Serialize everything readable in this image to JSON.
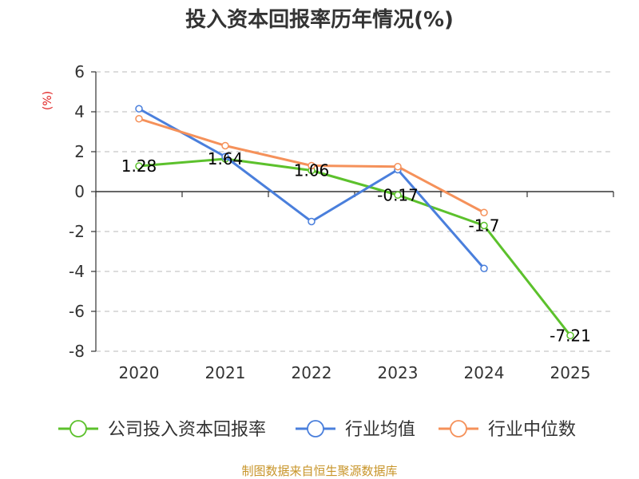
{
  "chart_data": {
    "type": "line",
    "title": "投入资本回报率历年情况(%)",
    "ylabel": "(%)",
    "xlabel": "",
    "categories": [
      "2020",
      "2021",
      "2022",
      "2023",
      "2024",
      "2025"
    ],
    "ylim": [
      -8,
      6
    ],
    "yticks": [
      6,
      4,
      2,
      0,
      -2,
      -4,
      -6,
      -8
    ],
    "grid": true,
    "series": [
      {
        "name": "公司投入资本回报率",
        "color": "#5cc12c",
        "values": [
          1.28,
          1.64,
          1.06,
          -0.17,
          -1.7,
          -7.21
        ],
        "labels": [
          "1.28",
          "1.64",
          "1.06",
          "-0.17",
          "-1.7",
          "-7.21"
        ]
      },
      {
        "name": "行业均值",
        "color": "#4a7fdc",
        "values": [
          4.15,
          1.75,
          -1.5,
          1.1,
          -3.85,
          null
        ]
      },
      {
        "name": "行业中位数",
        "color": "#f5915a",
        "values": [
          3.65,
          2.3,
          1.3,
          1.25,
          -1.05,
          null
        ]
      }
    ],
    "legend_position": "bottom",
    "source": "制图数据来自恒生聚源数据库"
  }
}
